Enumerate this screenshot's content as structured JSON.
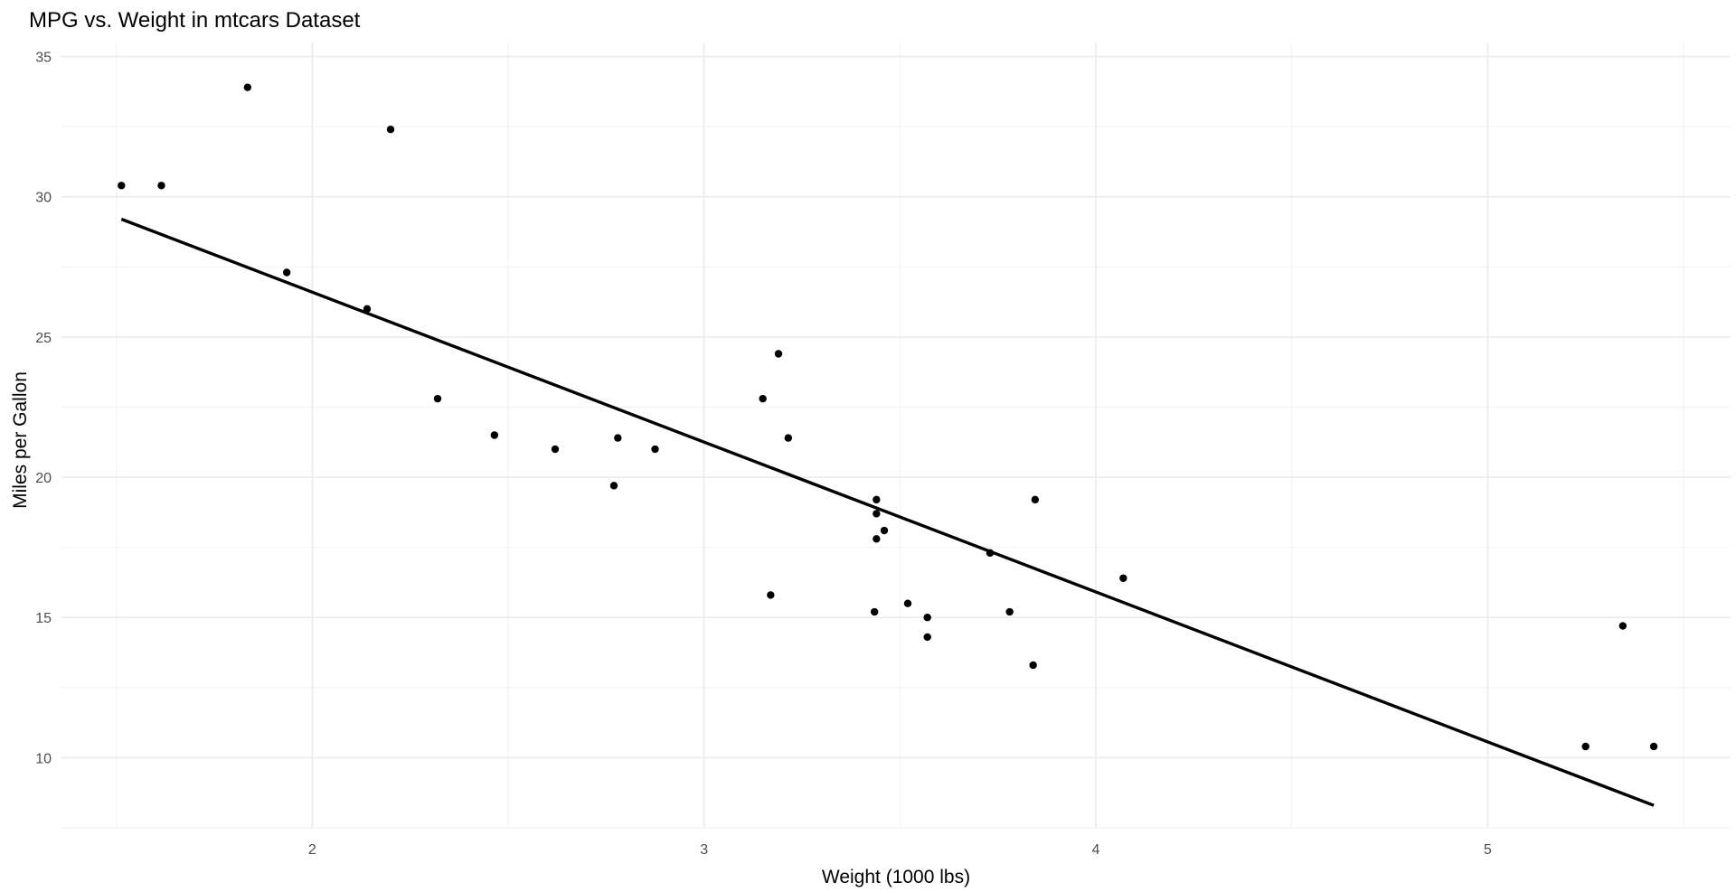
{
  "chart_data": {
    "type": "scatter",
    "title": "MPG vs. Weight in mtcars Dataset",
    "xlabel": "Weight (1000 lbs)",
    "ylabel": "Miles per Gallon",
    "xlim": [
      1.36,
      5.62
    ],
    "ylim": [
      7.5,
      35.5
    ],
    "x_ticks": [
      2,
      3,
      4,
      5
    ],
    "x_tick_labels": [
      "2",
      "3",
      "4",
      "5"
    ],
    "y_ticks": [
      10,
      15,
      20,
      25,
      30,
      35
    ],
    "y_tick_labels": [
      "10",
      "15",
      "20",
      "25",
      "30",
      "35"
    ],
    "grid": true,
    "legend": "none",
    "points": [
      {
        "x": 2.62,
        "y": 21.0
      },
      {
        "x": 2.875,
        "y": 21.0
      },
      {
        "x": 2.32,
        "y": 22.8
      },
      {
        "x": 3.215,
        "y": 21.4
      },
      {
        "x": 3.44,
        "y": 18.7
      },
      {
        "x": 3.46,
        "y": 18.1
      },
      {
        "x": 3.57,
        "y": 14.3
      },
      {
        "x": 3.19,
        "y": 24.4
      },
      {
        "x": 3.15,
        "y": 22.8
      },
      {
        "x": 3.44,
        "y": 19.2
      },
      {
        "x": 3.44,
        "y": 17.8
      },
      {
        "x": 4.07,
        "y": 16.4
      },
      {
        "x": 3.73,
        "y": 17.3
      },
      {
        "x": 3.78,
        "y": 15.2
      },
      {
        "x": 5.25,
        "y": 10.4
      },
      {
        "x": 5.424,
        "y": 10.4
      },
      {
        "x": 5.345,
        "y": 14.7
      },
      {
        "x": 2.2,
        "y": 32.4
      },
      {
        "x": 1.615,
        "y": 30.4
      },
      {
        "x": 1.835,
        "y": 33.9
      },
      {
        "x": 2.465,
        "y": 21.5
      },
      {
        "x": 3.52,
        "y": 15.5
      },
      {
        "x": 3.435,
        "y": 15.2
      },
      {
        "x": 3.84,
        "y": 13.3
      },
      {
        "x": 3.845,
        "y": 19.2
      },
      {
        "x": 1.935,
        "y": 27.3
      },
      {
        "x": 2.14,
        "y": 26.0
      },
      {
        "x": 1.513,
        "y": 30.4
      },
      {
        "x": 3.17,
        "y": 15.8
      },
      {
        "x": 2.77,
        "y": 19.7
      },
      {
        "x": 3.57,
        "y": 15.0
      },
      {
        "x": 2.78,
        "y": 21.4
      }
    ],
    "fit_line": {
      "x": [
        1.513,
        5.424
      ],
      "y": [
        29.2,
        8.3
      ]
    }
  }
}
